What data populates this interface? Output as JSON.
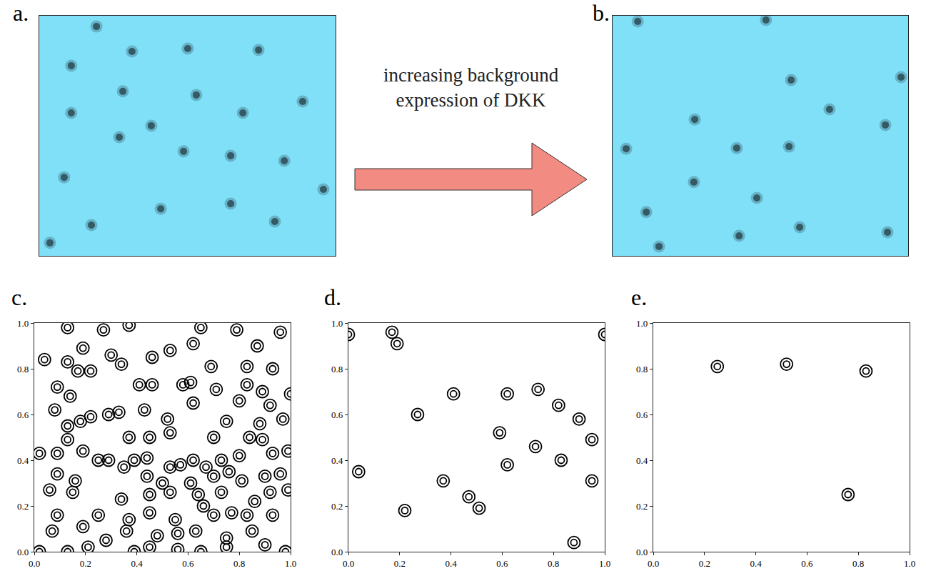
{
  "chart_data": [
    {
      "type": "scatter",
      "title": "a.",
      "marker": "blob",
      "color": "#2b4a55",
      "tick_labels": false,
      "grid": false,
      "xlim": [
        0,
        1
      ],
      "ylim": [
        0,
        1
      ],
      "x": [
        0.193,
        0.313,
        0.501,
        0.74,
        0.108,
        0.282,
        0.53,
        0.108,
        0.687,
        0.889,
        0.27,
        0.378,
        0.487,
        0.646,
        0.827,
        0.084,
        0.959,
        0.176,
        0.41,
        0.646,
        0.795,
        0.036
      ],
      "y": [
        0.955,
        0.851,
        0.863,
        0.857,
        0.792,
        0.685,
        0.67,
        0.595,
        0.595,
        0.643,
        0.494,
        0.542,
        0.435,
        0.417,
        0.396,
        0.327,
        0.277,
        0.128,
        0.196,
        0.217,
        0.143,
        0.054
      ]
    },
    {
      "type": "scatter",
      "title": "b.",
      "marker": "blob",
      "color": "#2b4a55",
      "tick_labels": false,
      "grid": false,
      "xlim": [
        0,
        1
      ],
      "ylim": [
        0,
        1
      ],
      "x": [
        0.085,
        0.519,
        0.604,
        0.734,
        0.976,
        0.278,
        0.923,
        0.046,
        0.42,
        0.597,
        0.275,
        0.488,
        0.633,
        0.428,
        0.93,
        0.114,
        0.157
      ],
      "y": [
        0.976,
        0.982,
        0.732,
        0.61,
        0.744,
        0.568,
        0.545,
        0.446,
        0.449,
        0.455,
        0.307,
        0.241,
        0.119,
        0.083,
        0.098,
        0.182,
        0.039
      ]
    },
    {
      "type": "scatter",
      "title": "c.",
      "marker": "ring",
      "color": "#000000",
      "grid": false,
      "xlim": [
        0,
        1
      ],
      "ylim": [
        0,
        1
      ],
      "xticks": [
        {
          "value": 0,
          "label": "0.0"
        },
        {
          "value": 0.2,
          "label": "0.2"
        },
        {
          "value": 0.4,
          "label": "0.4"
        },
        {
          "value": 0.6,
          "label": "0.6"
        },
        {
          "value": 0.8,
          "label": "0.8"
        },
        {
          "value": 1,
          "label": "1.0"
        }
      ],
      "yticks": [
        {
          "value": 0,
          "label": "0.0"
        },
        {
          "value": 0.2,
          "label": "0.2"
        },
        {
          "value": 0.4,
          "label": "0.4"
        },
        {
          "value": 0.6,
          "label": "0.6"
        },
        {
          "value": 0.8,
          "label": "0.8"
        },
        {
          "value": 1,
          "label": "1.0"
        }
      ],
      "x": [
        0.13,
        0.27,
        0.37,
        0.65,
        0.79,
        0.96,
        0.19,
        0.53,
        0.62,
        0.87,
        0.04,
        0.13,
        0.3,
        0.46,
        0.34,
        0.69,
        0.83,
        0.93,
        0.17,
        0.22,
        0.41,
        0.46,
        0.58,
        0.61,
        0.83,
        0.09,
        0.14,
        0.71,
        0.89,
        1.0,
        0.62,
        0.8,
        0.92,
        0.08,
        0.22,
        0.29,
        0.33,
        0.43,
        0.52,
        0.75,
        0.88,
        0.97,
        0.13,
        0.18,
        0.45,
        0.13,
        0.37,
        0.53,
        0.7,
        0.84,
        0.89,
        0.99,
        0.02,
        0.09,
        0.19,
        0.25,
        0.29,
        0.35,
        0.39,
        0.44,
        0.53,
        0.57,
        0.62,
        0.67,
        0.73,
        0.8,
        0.93,
        0.09,
        0.16,
        0.44,
        0.5,
        0.61,
        0.7,
        0.76,
        0.81,
        0.9,
        0.96,
        0.06,
        0.15,
        0.34,
        0.45,
        0.53,
        0.64,
        0.73,
        0.86,
        0.92,
        0.99,
        0.09,
        0.25,
        0.37,
        0.45,
        0.55,
        0.66,
        0.7,
        0.77,
        0.83,
        0.93,
        0.07,
        0.19,
        0.28,
        0.36,
        0.48,
        0.56,
        0.63,
        0.75,
        0.85,
        0.02,
        0.13,
        0.21,
        0.39,
        0.45,
        0.56,
        0.65,
        0.75,
        0.9,
        0.98
      ],
      "y": [
        0.98,
        0.97,
        0.99,
        0.98,
        0.97,
        0.96,
        0.89,
        0.88,
        0.91,
        0.9,
        0.84,
        0.83,
        0.86,
        0.85,
        0.82,
        0.81,
        0.81,
        0.8,
        0.79,
        0.79,
        0.73,
        0.73,
        0.73,
        0.74,
        0.73,
        0.72,
        0.68,
        0.71,
        0.7,
        0.69,
        0.65,
        0.66,
        0.64,
        0.62,
        0.59,
        0.6,
        0.61,
        0.62,
        0.58,
        0.57,
        0.56,
        0.58,
        0.55,
        0.57,
        0.5,
        0.49,
        0.5,
        0.52,
        0.5,
        0.5,
        0.49,
        0.44,
        0.43,
        0.43,
        0.44,
        0.4,
        0.4,
        0.37,
        0.4,
        0.41,
        0.37,
        0.38,
        0.4,
        0.37,
        0.4,
        0.42,
        0.43,
        0.34,
        0.31,
        0.33,
        0.3,
        0.3,
        0.33,
        0.35,
        0.31,
        0.33,
        0.34,
        0.27,
        0.26,
        0.23,
        0.25,
        0.26,
        0.25,
        0.26,
        0.22,
        0.26,
        0.27,
        0.16,
        0.16,
        0.14,
        0.17,
        0.14,
        0.2,
        0.16,
        0.17,
        0.16,
        0.16,
        0.09,
        0.11,
        0.05,
        0.09,
        0.07,
        0.08,
        0.09,
        0.06,
        0.09,
        0.0,
        0.0,
        0.02,
        0.0,
        0.02,
        0.01,
        0.0,
        0.02,
        0.03,
        0.0
      ]
    },
    {
      "type": "scatter",
      "title": "d.",
      "marker": "ring",
      "color": "#000000",
      "grid": false,
      "xlim": [
        0,
        1
      ],
      "ylim": [
        0,
        1
      ],
      "xticks": [
        {
          "value": 0,
          "label": "0.0"
        },
        {
          "value": 0.2,
          "label": "0.2"
        },
        {
          "value": 0.4,
          "label": "0.4"
        },
        {
          "value": 0.6,
          "label": "0.6"
        },
        {
          "value": 0.8,
          "label": "0.8"
        },
        {
          "value": 1,
          "label": "1.0"
        }
      ],
      "yticks": [
        {
          "value": 0,
          "label": "0.0"
        },
        {
          "value": 0.2,
          "label": "0.2"
        },
        {
          "value": 0.4,
          "label": "0.4"
        },
        {
          "value": 0.6,
          "label": "0.6"
        },
        {
          "value": 0.8,
          "label": "0.8"
        },
        {
          "value": 1,
          "label": "1.0"
        }
      ],
      "x": [
        0.0,
        1.0,
        0.17,
        0.19,
        0.41,
        0.27,
        0.62,
        0.74,
        0.82,
        0.9,
        0.59,
        0.95,
        0.04,
        0.37,
        0.62,
        0.73,
        0.83,
        0.95,
        0.22,
        0.47,
        0.51,
        0.88
      ],
      "y": [
        0.95,
        0.95,
        0.96,
        0.91,
        0.69,
        0.6,
        0.69,
        0.71,
        0.64,
        0.58,
        0.52,
        0.49,
        0.35,
        0.31,
        0.38,
        0.46,
        0.4,
        0.31,
        0.18,
        0.24,
        0.19,
        0.04
      ]
    },
    {
      "type": "scatter",
      "title": "e.",
      "marker": "ring",
      "color": "#000000",
      "grid": false,
      "xlim": [
        0,
        1
      ],
      "ylim": [
        0,
        1
      ],
      "xticks": [
        {
          "value": 0,
          "label": "0.0"
        },
        {
          "value": 0.2,
          "label": "0.2"
        },
        {
          "value": 0.4,
          "label": "0.4"
        },
        {
          "value": 0.6,
          "label": "0.6"
        },
        {
          "value": 0.8,
          "label": "0.8"
        },
        {
          "value": 1,
          "label": "1.0"
        }
      ],
      "yticks": [
        {
          "value": 0,
          "label": "0.0"
        },
        {
          "value": 0.2,
          "label": "0.2"
        },
        {
          "value": 0.4,
          "label": "0.4"
        },
        {
          "value": 0.6,
          "label": "0.6"
        },
        {
          "value": 0.8,
          "label": "0.8"
        },
        {
          "value": 1,
          "label": "1.0"
        }
      ],
      "x": [
        0.25,
        0.52,
        0.83,
        0.76
      ],
      "y": [
        0.81,
        0.82,
        0.79,
        0.25
      ]
    }
  ],
  "arrow_label": "increasing background expression of DKK"
}
